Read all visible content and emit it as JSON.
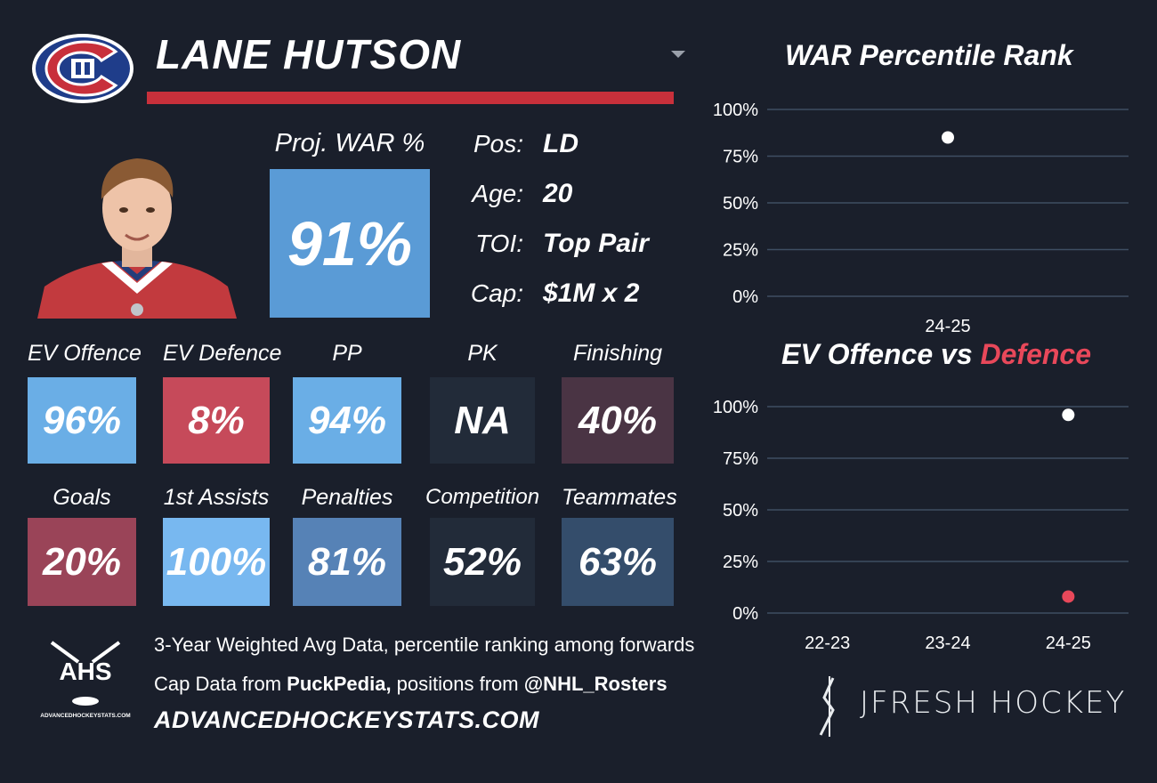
{
  "header": {
    "player_name": "LANE HUTSON"
  },
  "proj_war": {
    "label": "Proj. WAR %",
    "value": "91%",
    "color": "#5a9bd6"
  },
  "info": [
    {
      "label": "Pos:",
      "value": "LD"
    },
    {
      "label": "Age:",
      "value": "20"
    },
    {
      "label": "TOI:",
      "value": "Top Pair"
    },
    {
      "label": "Cap:",
      "value": "$1M x 2"
    }
  ],
  "stats_row1": [
    {
      "label": "EV Offence",
      "value": "96%",
      "color": "#6aaee6"
    },
    {
      "label": "EV Defence",
      "value": "8%",
      "color": "#c64a5a"
    },
    {
      "label": "PP",
      "value": "94%",
      "color": "#6aaee6"
    },
    {
      "label": "PK",
      "value": "NA",
      "color": "#222b39"
    },
    {
      "label": "Finishing",
      "value": "40%",
      "color": "#4a3444"
    }
  ],
  "stats_row2": [
    {
      "label": "Goals",
      "value": "20%",
      "color": "#9a4458"
    },
    {
      "label": "1st Assists",
      "value": "100%",
      "color": "#78b8f0"
    },
    {
      "label": "Penalties",
      "value": "81%",
      "color": "#5682b6"
    },
    {
      "label": "Competition",
      "value": "52%",
      "color": "#222b39"
    },
    {
      "label": "Teammates",
      "value": "63%",
      "color": "#344d6b"
    }
  ],
  "footer": {
    "ahs_logo_text": "AHS",
    "ahs_logo_subtext": "ADVANCEDHOCKEYSTATS.COM",
    "line1": "3-Year Weighted Avg Data, percentile ranking among forwards",
    "line2_prefix": "Cap Data from ",
    "line2_bold1": "PuckPedia,",
    "line2_mid": " positions from ",
    "line2_bold2": "@NHL_Rosters",
    "site": "ADVANCEDHOCKEYSTATS.COM",
    "brand": "JFRESH HOCKEY"
  },
  "chart_data": [
    {
      "type": "scatter",
      "title": "WAR Percentile Rank",
      "categories": [
        "24-25"
      ],
      "series": [
        {
          "values": [
            85
          ],
          "color": "#ffffff"
        }
      ],
      "ylim": [
        0,
        100
      ],
      "yticks": [
        "0%",
        "25%",
        "50%",
        "75%",
        "100%"
      ],
      "grid": true
    },
    {
      "type": "scatter",
      "title_part1": "EV Offence vs ",
      "title_part2": "Defence",
      "title_part2_color": "#e8485a",
      "categories": [
        "22-23",
        "23-24",
        "24-25"
      ],
      "series": [
        {
          "values": [
            null,
            null,
            96
          ],
          "color": "#ffffff"
        },
        {
          "values": [
            null,
            null,
            8
          ],
          "color": "#e8485a"
        }
      ],
      "ylim": [
        0,
        100
      ],
      "yticks": [
        "0%",
        "25%",
        "50%",
        "75%",
        "100%"
      ],
      "grid": true
    }
  ]
}
